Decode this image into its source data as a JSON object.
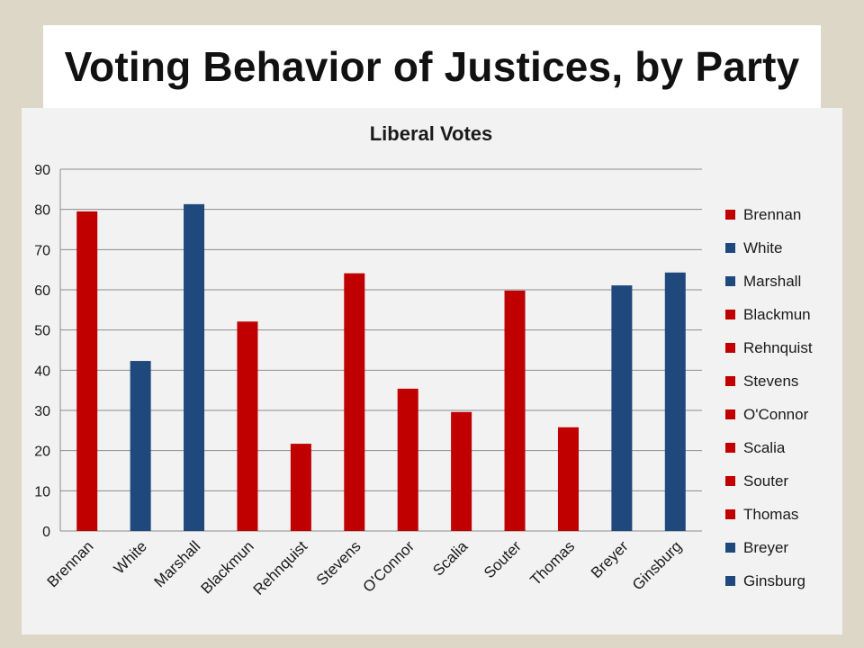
{
  "slide": {
    "title": "Voting Behavior of Justices, by Party"
  },
  "colors": {
    "republican_red": "#c00000",
    "democrat_blue": "#1f497d",
    "background": "#dcd7c6",
    "plot_bg": "#f2f2f2"
  },
  "chart_data": {
    "type": "bar",
    "title": "Liberal Votes",
    "xlabel": "",
    "ylabel": "",
    "ylim": [
      0,
      90
    ],
    "yticks": [
      0,
      10,
      20,
      30,
      40,
      50,
      60,
      70,
      80,
      90
    ],
    "grid": true,
    "legend_position": "right",
    "categories": [
      "Brennan",
      "White",
      "Marshall",
      "Blackmun",
      "Rehnquist",
      "Stevens",
      "O'Connor",
      "Scalia",
      "Souter",
      "Thomas",
      "Breyer",
      "Ginsburg"
    ],
    "values": [
      79.5,
      42.3,
      81.3,
      52.1,
      21.7,
      64.1,
      35.4,
      29.6,
      59.8,
      25.8,
      61.1,
      64.3
    ],
    "colors": [
      "#c00000",
      "#1f497d",
      "#1f497d",
      "#c00000",
      "#c00000",
      "#c00000",
      "#c00000",
      "#c00000",
      "#c00000",
      "#c00000",
      "#1f497d",
      "#1f497d"
    ],
    "legend": [
      {
        "label": "Brennan",
        "color": "#c00000"
      },
      {
        "label": "White",
        "color": "#1f497d"
      },
      {
        "label": "Marshall",
        "color": "#1f497d"
      },
      {
        "label": "Blackmun",
        "color": "#c00000"
      },
      {
        "label": "Rehnquist",
        "color": "#c00000"
      },
      {
        "label": "Stevens",
        "color": "#c00000"
      },
      {
        "label": "O'Connor",
        "color": "#c00000"
      },
      {
        "label": "Scalia",
        "color": "#c00000"
      },
      {
        "label": "Souter",
        "color": "#c00000"
      },
      {
        "label": "Thomas",
        "color": "#c00000"
      },
      {
        "label": "Breyer",
        "color": "#1f497d"
      },
      {
        "label": "Ginsburg",
        "color": "#1f497d"
      }
    ]
  }
}
